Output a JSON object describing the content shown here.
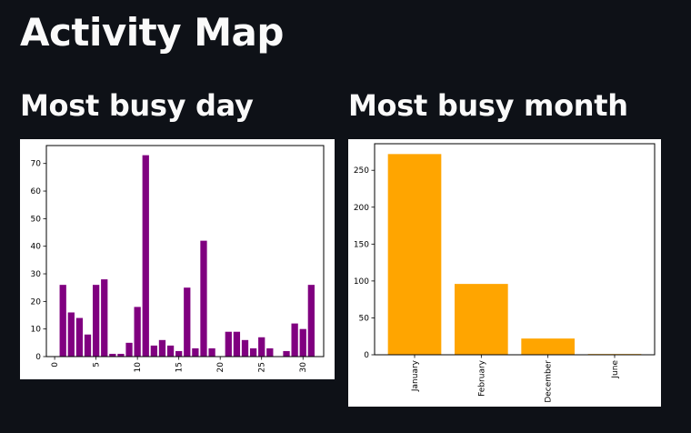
{
  "page": {
    "title": "Activity Map",
    "left_subheader": "Most busy day",
    "right_subheader": "Most busy month"
  },
  "colors": {
    "background": "#0e1117",
    "text": "#fafafa",
    "day_bar": "#800080",
    "month_bar": "#ffa500"
  },
  "chart_data": [
    {
      "type": "bar",
      "title": "",
      "xlabel": "",
      "ylabel": "",
      "x": [
        1,
        2,
        3,
        4,
        5,
        6,
        7,
        8,
        9,
        10,
        11,
        12,
        13,
        14,
        15,
        16,
        17,
        18,
        19,
        20,
        21,
        22,
        23,
        24,
        25,
        26,
        27,
        28,
        29,
        30,
        31
      ],
      "values": [
        26,
        16,
        14,
        8,
        26,
        28,
        1,
        1,
        5,
        18,
        73,
        4,
        6,
        4,
        2,
        25,
        3,
        42,
        3,
        0,
        9,
        9,
        6,
        3,
        7,
        3,
        0,
        2,
        12,
        10,
        26
      ],
      "xticks": [
        0,
        5,
        10,
        15,
        20,
        25,
        30
      ],
      "yticks": [
        0,
        10,
        20,
        30,
        40,
        50,
        60,
        70
      ],
      "xlim": [
        -1,
        32.5
      ],
      "ylim": [
        0,
        76.5
      ],
      "grid": false
    },
    {
      "type": "bar",
      "title": "",
      "xlabel": "",
      "ylabel": "",
      "categories": [
        "January",
        "February",
        "December",
        "June"
      ],
      "values": [
        272,
        96,
        22,
        1
      ],
      "yticks": [
        0,
        50,
        100,
        150,
        200,
        250
      ],
      "ylim": [
        0,
        286
      ],
      "grid": false
    }
  ]
}
